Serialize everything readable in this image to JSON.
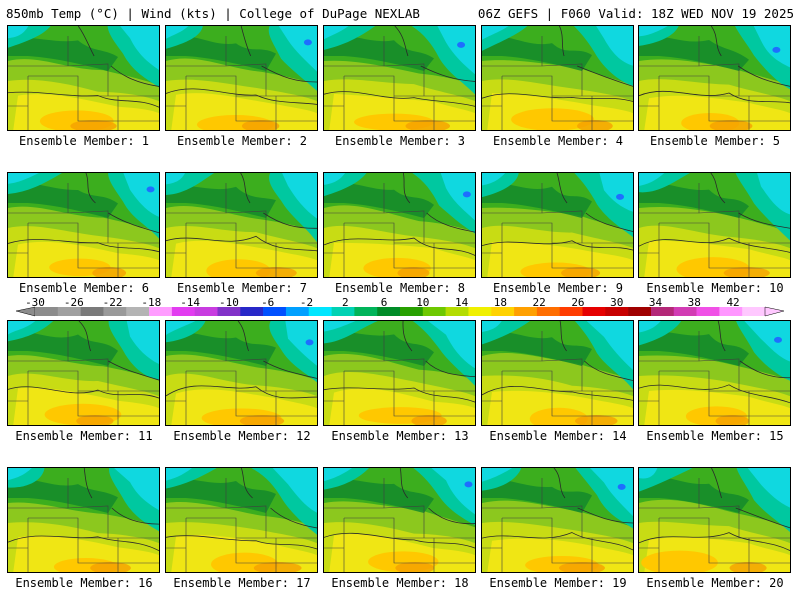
{
  "header": {
    "left": "850mb Temp (°C) | Wind (kts) | College of DuPage NEXLAB",
    "right": "06Z GEFS | F060 Valid: 18Z WED NOV 19 2025"
  },
  "members": [
    {
      "label": "Ensemble Member: 1"
    },
    {
      "label": "Ensemble Member: 2"
    },
    {
      "label": "Ensemble Member: 3"
    },
    {
      "label": "Ensemble Member: 4"
    },
    {
      "label": "Ensemble Member: 5"
    },
    {
      "label": "Ensemble Member: 6"
    },
    {
      "label": "Ensemble Member: 7"
    },
    {
      "label": "Ensemble Member: 8"
    },
    {
      "label": "Ensemble Member: 9"
    },
    {
      "label": "Ensemble Member: 10"
    },
    {
      "label": "Ensemble Member: 11"
    },
    {
      "label": "Ensemble Member: 12"
    },
    {
      "label": "Ensemble Member: 13"
    },
    {
      "label": "Ensemble Member: 14"
    },
    {
      "label": "Ensemble Member: 15"
    },
    {
      "label": "Ensemble Member: 16"
    },
    {
      "label": "Ensemble Member: 17"
    },
    {
      "label": "Ensemble Member: 18"
    },
    {
      "label": "Ensemble Member: 19"
    },
    {
      "label": "Ensemble Member: 20"
    }
  ],
  "colorbar": {
    "ticks": [
      "-30",
      "-26",
      "-22",
      "-18",
      "-14",
      "-10",
      "-6",
      "-2",
      "2",
      "6",
      "10",
      "14",
      "18",
      "22",
      "26",
      "30",
      "34",
      "38",
      "42"
    ],
    "colors": [
      "#8c8c8c",
      "#a0a0a0",
      "#7a7a7a",
      "#9a9a9a",
      "#b4b4b4",
      "#ff9cff",
      "#e23cf0",
      "#c83ce0",
      "#8232c8",
      "#2828c8",
      "#0050ff",
      "#00a0ff",
      "#00e6ff",
      "#00d2b4",
      "#00b45a",
      "#008c28",
      "#28a000",
      "#6ec800",
      "#b4dc00",
      "#f0f000",
      "#ffd200",
      "#ffa000",
      "#ff6e00",
      "#ff3c00",
      "#e60000",
      "#c80000",
      "#a00000",
      "#b42878",
      "#d23cb4",
      "#f050e6",
      "#ff96ff",
      "#ffc8ff"
    ]
  },
  "map_palette": {
    "cyan": "#10d8e0",
    "teal": "#00c8a0",
    "dark_green": "#138a2b",
    "green": "#3cae1e",
    "light_green": "#8cc81e",
    "yellow_green": "#c8dc14",
    "yellow": "#f0e614",
    "orange_yellow": "#ffc800",
    "orange": "#f5a000",
    "blue": "#1e6eff"
  }
}
